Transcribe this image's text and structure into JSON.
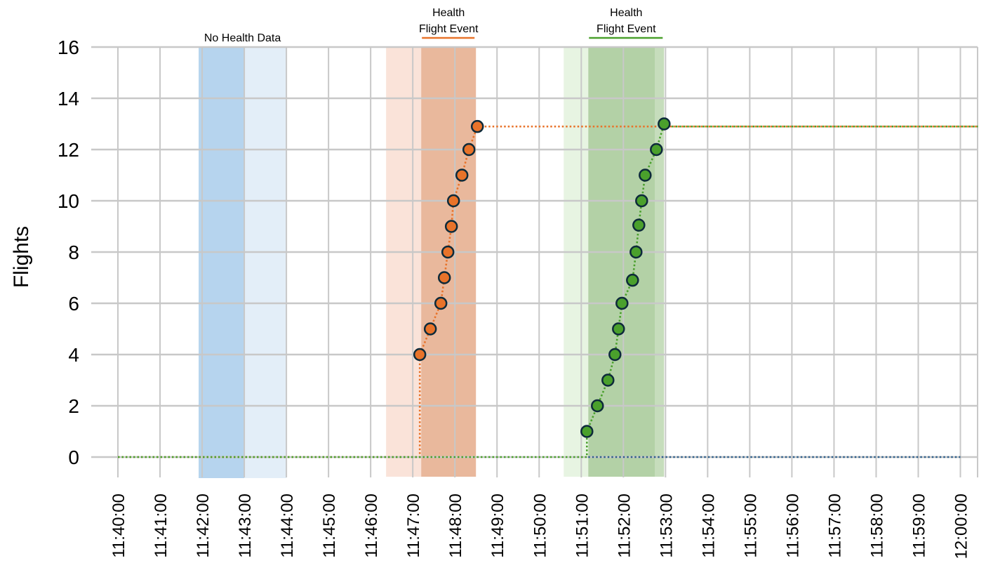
{
  "chart_data": {
    "type": "line",
    "title": "",
    "xlabel": "",
    "ylabel": "Flights",
    "ylim": [
      -0.8,
      16
    ],
    "xlim": [
      "11:39:30",
      "12:00:25"
    ],
    "yticks": [
      0,
      2,
      4,
      6,
      8,
      10,
      12,
      14,
      16
    ],
    "xticks": [
      "11:40:00",
      "11:41:00",
      "11:42:00",
      "11:43:00",
      "11:44:00",
      "11:45:00",
      "11:46:00",
      "11:47:00",
      "11:48:00",
      "11:49:00",
      "11:50:00",
      "11:51:00",
      "11:52:00",
      "11:53:00",
      "11:54:00",
      "11:55:00",
      "11:56:00",
      "11:57:00",
      "11:58:00",
      "11:59:00",
      "12:00:00"
    ],
    "grid": true,
    "legend": "none",
    "colors": {
      "orange": "#e8732a",
      "green": "#4aa02c",
      "blue_line": "#2f5f8a",
      "blue_dark": "#b6d4ee",
      "blue_light": "#e3eef8",
      "orange_dark": "#e9b89c",
      "orange_light": "#fae3d9",
      "green_dark": "#b3d1a6",
      "green_light": "#e7f4e2",
      "marker_edge": "#0d2a3a",
      "grid": "#c8c8c8"
    },
    "bands": [
      {
        "start": "11:41:55",
        "end": "11:43:00",
        "shade": "dark",
        "color": "blue"
      },
      {
        "start": "11:43:00",
        "end": "11:44:00",
        "shade": "light",
        "color": "blue"
      },
      {
        "start": "11:46:22",
        "end": "11:47:12",
        "shade": "light",
        "color": "orange"
      },
      {
        "start": "11:47:12",
        "end": "11:48:30",
        "shade": "dark",
        "color": "orange"
      },
      {
        "start": "11:50:35",
        "end": "11:51:10",
        "shade": "light",
        "color": "green"
      },
      {
        "start": "11:51:10",
        "end": "11:52:45",
        "shade": "dark",
        "color": "green"
      },
      {
        "start": "11:52:45",
        "end": "11:52:58",
        "shade": "mid",
        "color": "green"
      }
    ],
    "annotations": [
      {
        "lines": [
          "No Health Data"
        ],
        "x_start": "11:41:55",
        "x_end": "11:44:00",
        "underline": false,
        "color": "blue"
      },
      {
        "lines": [
          "Health",
          "Flight Event"
        ],
        "x_start": "11:47:12",
        "x_end": "11:48:30",
        "underline": true,
        "color": "orange"
      },
      {
        "lines": [
          "Health",
          "Flight Event"
        ],
        "x_start": "11:51:10",
        "x_end": "11:52:58",
        "underline": true,
        "color": "green"
      }
    ],
    "series": [
      {
        "color": "orange",
        "style": "dotted",
        "markers": [
          [
            "11:47:10",
            4
          ],
          [
            "11:47:25",
            5
          ],
          [
            "11:47:40",
            6
          ],
          [
            "11:47:45",
            7
          ],
          [
            "11:47:50",
            8
          ],
          [
            "11:47:55",
            9
          ],
          [
            "11:47:58",
            10
          ],
          [
            "11:48:10",
            11
          ],
          [
            "11:48:20",
            12
          ],
          [
            "11:48:32",
            12.9
          ]
        ],
        "line": [
          [
            "11:40:00",
            0
          ],
          [
            "11:47:10",
            0
          ],
          [
            "11:47:10",
            4
          ],
          [
            "11:47:25",
            5
          ],
          [
            "11:47:40",
            6
          ],
          [
            "11:47:45",
            7
          ],
          [
            "11:47:50",
            8
          ],
          [
            "11:47:55",
            9
          ],
          [
            "11:47:58",
            10
          ],
          [
            "11:48:10",
            11
          ],
          [
            "11:48:20",
            12
          ],
          [
            "11:48:32",
            12.9
          ],
          [
            "11:50:00",
            12.9
          ],
          [
            "11:52:58",
            12.9
          ],
          [
            "12:00:25",
            12.9
          ]
        ]
      },
      {
        "color": "green",
        "style": "dotted",
        "markers": [
          [
            "11:51:08",
            1
          ],
          [
            "11:51:23",
            2
          ],
          [
            "11:51:38",
            3
          ],
          [
            "11:51:48",
            4
          ],
          [
            "11:51:53",
            5
          ],
          [
            "11:51:58",
            6
          ],
          [
            "11:52:13",
            6.9
          ],
          [
            "11:52:18",
            8
          ],
          [
            "11:52:22",
            9.05
          ],
          [
            "11:52:26",
            10
          ],
          [
            "11:52:31",
            11
          ],
          [
            "11:52:47",
            12
          ],
          [
            "11:52:58",
            13
          ]
        ],
        "line": [
          [
            "11:40:00",
            0
          ],
          [
            "11:51:08",
            0
          ],
          [
            "11:51:08",
            1
          ],
          [
            "11:51:23",
            2
          ],
          [
            "11:51:38",
            3
          ],
          [
            "11:51:48",
            4
          ],
          [
            "11:51:53",
            5
          ],
          [
            "11:51:58",
            6
          ],
          [
            "11:52:13",
            6.9
          ],
          [
            "11:52:18",
            8
          ],
          [
            "11:52:22",
            9.05
          ],
          [
            "11:52:26",
            10
          ],
          [
            "11:52:31",
            11
          ],
          [
            "11:52:47",
            12
          ],
          [
            "11:52:58",
            13
          ],
          [
            "11:53:10",
            12.9
          ],
          [
            "12:00:25",
            12.9
          ]
        ]
      },
      {
        "color": "blue_line",
        "style": "dotted",
        "markers": [],
        "line": [
          [
            "11:51:10",
            0
          ],
          [
            "12:00:00",
            0
          ]
        ]
      }
    ]
  }
}
